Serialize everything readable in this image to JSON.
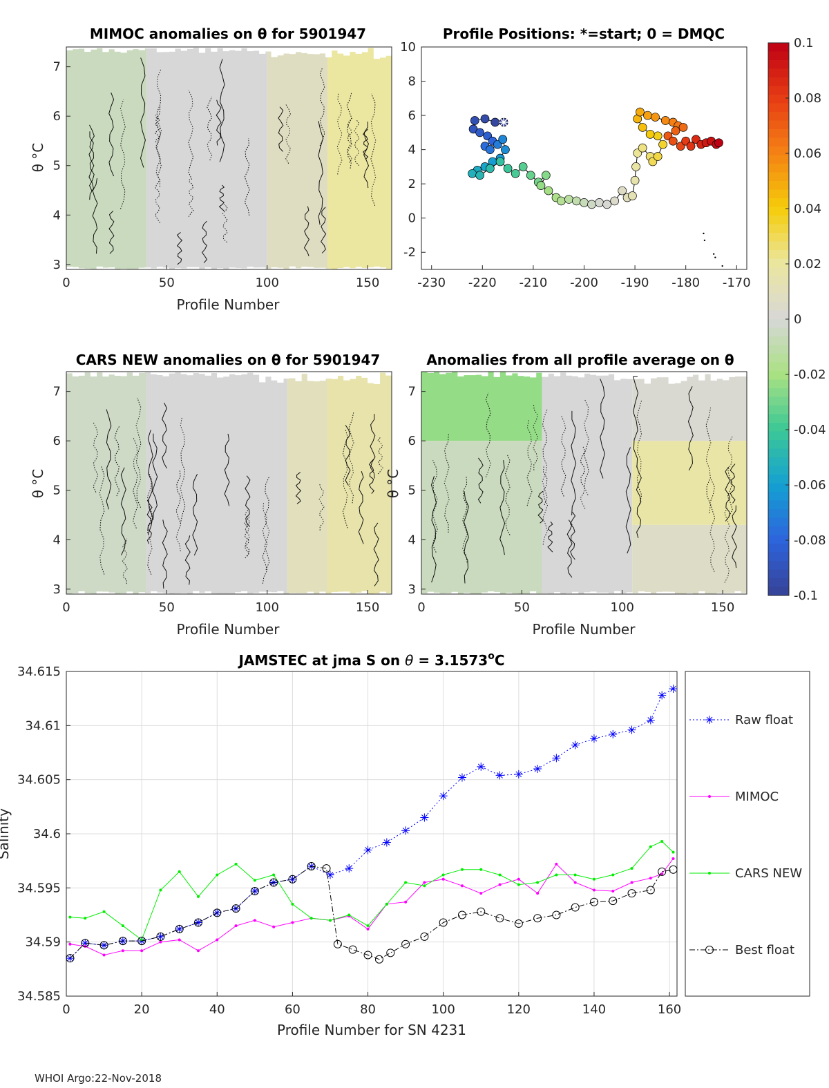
{
  "footer": "WHOI Argo:22-Nov-2018",
  "colorbar": {
    "ticks": [
      {
        "v": 0.1,
        "label": "0.1"
      },
      {
        "v": 0.08,
        "label": "0.08"
      },
      {
        "v": 0.06,
        "label": "0.06"
      },
      {
        "v": 0.04,
        "label": "0.04"
      },
      {
        "v": 0.02,
        "label": "0.02"
      },
      {
        "v": 0,
        "label": "0"
      },
      {
        "v": -0.02,
        "label": "-0.02"
      },
      {
        "v": -0.04,
        "label": "-0.04"
      },
      {
        "v": -0.06,
        "label": "-0.06"
      },
      {
        "v": -0.08,
        "label": "-0.08"
      },
      {
        "v": -0.1,
        "label": "-0.1"
      }
    ],
    "range": [
      -0.1,
      0.1
    ]
  },
  "chart_data": [
    {
      "id": "mimoc",
      "type": "heatmap",
      "title": "MIMOC anomalies on θ  for 5901947",
      "xlabel": "Profile Number",
      "ylabel": "θ °C",
      "xlim": [
        0,
        162
      ],
      "ylim": [
        2.9,
        7.4
      ],
      "xticks": [
        0,
        50,
        100,
        150
      ],
      "yticks": [
        3,
        4,
        5,
        6,
        7
      ],
      "band_anomaly": [
        {
          "x": [
            0,
            40
          ],
          "value": -0.006
        },
        {
          "x": [
            40,
            100
          ],
          "value": 0.0
        },
        {
          "x": [
            100,
            130
          ],
          "value": 0.008
        },
        {
          "x": [
            130,
            162
          ],
          "value": 0.02
        }
      ]
    },
    {
      "id": "positions",
      "type": "scatter",
      "title": "Profile Positions: *=start; 0 = DMQC",
      "xlim": [
        -232,
        -168
      ],
      "ylim": [
        -3,
        10
      ],
      "xticks": [
        -230,
        -220,
        -210,
        -200,
        -190,
        -180,
        -170
      ],
      "yticks": [
        -2,
        0,
        2,
        4,
        6,
        8,
        10
      ],
      "start": {
        "lon": -215.8,
        "lat": 5.6
      },
      "track": [
        {
          "lon": -215.8,
          "lat": 5.6
        },
        {
          "lon": -217.5,
          "lat": 5.6
        },
        {
          "lon": -219.5,
          "lat": 5.8
        },
        {
          "lon": -221.5,
          "lat": 5.7
        },
        {
          "lon": -221.8,
          "lat": 5.2
        },
        {
          "lon": -220.5,
          "lat": 5.0
        },
        {
          "lon": -219.0,
          "lat": 4.8
        },
        {
          "lon": -218.0,
          "lat": 4.5
        },
        {
          "lon": -219.5,
          "lat": 4.2
        },
        {
          "lon": -218.5,
          "lat": 4.0
        },
        {
          "lon": -217.0,
          "lat": 4.3
        },
        {
          "lon": -216.0,
          "lat": 4.6
        },
        {
          "lon": -215.5,
          "lat": 4.0
        },
        {
          "lon": -216.5,
          "lat": 3.5
        },
        {
          "lon": -218.0,
          "lat": 3.3
        },
        {
          "lon": -219.5,
          "lat": 3.0
        },
        {
          "lon": -221.0,
          "lat": 2.8
        },
        {
          "lon": -222.0,
          "lat": 2.6
        },
        {
          "lon": -220.5,
          "lat": 2.5
        },
        {
          "lon": -218.5,
          "lat": 2.9
        },
        {
          "lon": -216.5,
          "lat": 3.3
        },
        {
          "lon": -215.0,
          "lat": 2.9
        },
        {
          "lon": -213.5,
          "lat": 2.6
        },
        {
          "lon": -212.0,
          "lat": 3.0
        },
        {
          "lon": -210.5,
          "lat": 2.5
        },
        {
          "lon": -209.0,
          "lat": 2.1
        },
        {
          "lon": -207.5,
          "lat": 2.5
        },
        {
          "lon": -208.5,
          "lat": 1.9
        },
        {
          "lon": -207.0,
          "lat": 1.6
        },
        {
          "lon": -205.5,
          "lat": 1.2
        },
        {
          "lon": -204.5,
          "lat": 1.0
        },
        {
          "lon": -203.0,
          "lat": 1.1
        },
        {
          "lon": -201.5,
          "lat": 1.0
        },
        {
          "lon": -200.0,
          "lat": 0.9
        },
        {
          "lon": -198.5,
          "lat": 0.8
        },
        {
          "lon": -197.0,
          "lat": 0.9
        },
        {
          "lon": -195.5,
          "lat": 0.8
        },
        {
          "lon": -194.0,
          "lat": 1.0
        },
        {
          "lon": -192.5,
          "lat": 1.6
        },
        {
          "lon": -191.5,
          "lat": 1.2
        },
        {
          "lon": -190.5,
          "lat": 1.3
        },
        {
          "lon": -190.0,
          "lat": 2.2
        },
        {
          "lon": -189.8,
          "lat": 3.0
        },
        {
          "lon": -189.5,
          "lat": 3.8
        },
        {
          "lon": -188.5,
          "lat": 4.1
        },
        {
          "lon": -187.0,
          "lat": 3.6
        },
        {
          "lon": -186.5,
          "lat": 3.3
        },
        {
          "lon": -185.5,
          "lat": 3.6
        },
        {
          "lon": -184.5,
          "lat": 4.3
        },
        {
          "lon": -185.5,
          "lat": 4.8
        },
        {
          "lon": -187.0,
          "lat": 4.9
        },
        {
          "lon": -188.5,
          "lat": 5.3
        },
        {
          "lon": -189.5,
          "lat": 5.8
        },
        {
          "lon": -189.0,
          "lat": 6.2
        },
        {
          "lon": -187.5,
          "lat": 6.0
        },
        {
          "lon": -186.0,
          "lat": 5.9
        },
        {
          "lon": -184.0,
          "lat": 5.7
        },
        {
          "lon": -182.5,
          "lat": 5.6
        },
        {
          "lon": -181.5,
          "lat": 5.4
        },
        {
          "lon": -180.5,
          "lat": 5.3
        },
        {
          "lon": -182.0,
          "lat": 5.1
        },
        {
          "lon": -183.5,
          "lat": 4.8
        },
        {
          "lon": -182.5,
          "lat": 4.5
        },
        {
          "lon": -181.0,
          "lat": 4.2
        },
        {
          "lon": -180.0,
          "lat": 4.5
        },
        {
          "lon": -179.0,
          "lat": 4.2
        },
        {
          "lon": -178.0,
          "lat": 4.6
        },
        {
          "lon": -177.0,
          "lat": 4.3
        },
        {
          "lon": -176.0,
          "lat": 4.4
        },
        {
          "lon": -175.0,
          "lat": 4.5
        },
        {
          "lon": -174.0,
          "lat": 4.3
        },
        {
          "lon": -173.5,
          "lat": 4.4
        }
      ],
      "stray_points": [
        {
          "lon": -176.5,
          "lat": -0.9
        },
        {
          "lon": -176.3,
          "lat": -1.3
        },
        {
          "lon": -174.5,
          "lat": -2.1
        },
        {
          "lon": -174.2,
          "lat": -2.3
        },
        {
          "lon": -172.8,
          "lat": -2.8
        }
      ]
    },
    {
      "id": "cars",
      "type": "heatmap",
      "title": "CARS NEW anomalies on θ for 5901947",
      "xlabel": "Profile Number",
      "ylabel": "θ °C",
      "xlim": [
        0,
        162
      ],
      "ylim": [
        2.9,
        7.4
      ],
      "xticks": [
        0,
        50,
        100,
        150
      ],
      "yticks": [
        3,
        4,
        5,
        6,
        7
      ],
      "band_anomaly": [
        {
          "x": [
            0,
            40
          ],
          "value": -0.004
        },
        {
          "x": [
            40,
            110
          ],
          "value": 0.0
        },
        {
          "x": [
            110,
            130
          ],
          "value": 0.01
        },
        {
          "x": [
            130,
            162
          ],
          "value": 0.016
        }
      ]
    },
    {
      "id": "avg",
      "type": "heatmap",
      "title": "Anomalies from all profile average on θ",
      "xlabel": "Profile Number",
      "ylabel": "θ °C",
      "xlim": [
        0,
        162
      ],
      "ylim": [
        2.9,
        7.4
      ],
      "xticks": [
        0,
        50,
        100,
        150
      ],
      "yticks": [
        3,
        4,
        5,
        6,
        7
      ],
      "band_anomaly": [
        {
          "x": [
            0,
            60
          ],
          "y": [
            6.0,
            7.4
          ],
          "value": -0.024
        },
        {
          "x": [
            0,
            60
          ],
          "y": [
            2.9,
            6.0
          ],
          "value": -0.006
        },
        {
          "x": [
            60,
            105
          ],
          "value": 0.0
        },
        {
          "x": [
            105,
            162
          ],
          "y": [
            4.3,
            6.0
          ],
          "value": 0.018
        },
        {
          "x": [
            105,
            162
          ],
          "y": [
            2.9,
            4.3
          ],
          "value": 0.006
        },
        {
          "x": [
            105,
            162
          ],
          "y": [
            6.0,
            7.4
          ],
          "value": 0.002
        }
      ]
    },
    {
      "id": "salinity",
      "type": "line",
      "title": "JAMSTEC at jma S on θ = 3.1573°C",
      "title_prefix": "JAMSTEC at jma S on ",
      "title_theta": "θ",
      "title_value": " = 3.1573",
      "title_unit_sup": "o",
      "title_unit": "C",
      "xlabel": "Profile Number for SN 4231",
      "ylabel": "Salinity",
      "xlim": [
        0,
        162
      ],
      "ylim": [
        34.585,
        34.615
      ],
      "xticks": [
        0,
        20,
        40,
        60,
        80,
        100,
        120,
        140,
        160
      ],
      "yticks": [
        {
          "v": 34.585,
          "label": "34.585"
        },
        {
          "v": 34.59,
          "label": "34.59"
        },
        {
          "v": 34.595,
          "label": "34.595"
        },
        {
          "v": 34.6,
          "label": "34.6"
        },
        {
          "v": 34.605,
          "label": "34.605"
        },
        {
          "v": 34.61,
          "label": "34.61"
        },
        {
          "v": 34.615,
          "label": "34.615"
        }
      ],
      "grid": true,
      "legend": "right",
      "series": [
        {
          "name": "Raw float",
          "color": "#0000ff",
          "x": [
            1,
            5,
            10,
            15,
            20,
            25,
            30,
            35,
            40,
            45,
            50,
            55,
            60,
            65,
            70,
            75,
            80,
            85,
            90,
            95,
            100,
            105,
            110,
            115,
            120,
            125,
            130,
            135,
            140,
            145,
            150,
            155,
            158,
            161
          ],
          "values": [
            34.5885,
            34.5899,
            34.5897,
            34.5901,
            34.5901,
            34.5905,
            34.5912,
            34.5918,
            34.5927,
            34.5931,
            34.5947,
            34.5955,
            34.5958,
            34.597,
            34.5962,
            34.5968,
            34.5985,
            34.5992,
            34.6003,
            34.6015,
            34.6035,
            34.6052,
            34.6062,
            34.6054,
            34.6055,
            34.606,
            34.607,
            34.6082,
            34.6088,
            34.6092,
            34.6096,
            34.6105,
            34.6128,
            34.6134
          ]
        },
        {
          "name": "MIMOC",
          "color": "#ff00ff",
          "x": [
            1,
            5,
            10,
            15,
            20,
            25,
            30,
            35,
            40,
            45,
            50,
            55,
            60,
            65,
            70,
            75,
            80,
            85,
            90,
            95,
            100,
            105,
            110,
            115,
            120,
            125,
            130,
            135,
            140,
            145,
            150,
            155,
            158,
            161
          ],
          "values": [
            34.5898,
            34.5896,
            34.5888,
            34.5892,
            34.5892,
            34.59,
            34.5902,
            34.5892,
            34.5902,
            34.5915,
            34.592,
            34.5914,
            34.5918,
            34.5922,
            34.592,
            34.5924,
            34.5912,
            34.5935,
            34.5937,
            34.5955,
            34.5958,
            34.5952,
            34.5945,
            34.5953,
            34.5958,
            34.5945,
            34.5972,
            34.5955,
            34.5948,
            34.5947,
            34.5955,
            34.5959,
            34.5963,
            34.5977
          ]
        },
        {
          "name": "CARS NEW",
          "color": "#00ee00",
          "x": [
            1,
            5,
            10,
            15,
            20,
            25,
            30,
            35,
            40,
            45,
            50,
            55,
            60,
            65,
            70,
            75,
            80,
            85,
            90,
            95,
            100,
            105,
            110,
            115,
            120,
            125,
            130,
            135,
            140,
            145,
            150,
            155,
            158,
            161
          ],
          "values": [
            34.5923,
            34.5922,
            34.5928,
            34.5915,
            34.5902,
            34.5948,
            34.5965,
            34.5942,
            34.5962,
            34.5972,
            34.5957,
            34.5962,
            34.5935,
            34.5922,
            34.592,
            34.5925,
            34.5915,
            34.5935,
            34.5955,
            34.5952,
            34.5962,
            34.5967,
            34.5967,
            34.5962,
            34.5953,
            34.5955,
            34.5962,
            34.5962,
            34.5958,
            34.5962,
            34.5968,
            34.5988,
            34.5993,
            34.5983
          ]
        },
        {
          "name": "Best float",
          "color": "#000000",
          "x": [
            1,
            5,
            10,
            15,
            20,
            25,
            30,
            35,
            40,
            45,
            50,
            55,
            60,
            65,
            69,
            72,
            76,
            80,
            83,
            86,
            90,
            95,
            100,
            105,
            110,
            115,
            120,
            125,
            130,
            135,
            140,
            145,
            150,
            155,
            158,
            161
          ],
          "values": [
            34.5885,
            34.5899,
            34.5897,
            34.5901,
            34.5901,
            34.5905,
            34.5912,
            34.5918,
            34.5927,
            34.5931,
            34.5947,
            34.5955,
            34.5958,
            34.597,
            34.5968,
            34.5898,
            34.5893,
            34.5888,
            34.5884,
            34.589,
            34.5898,
            34.5905,
            34.5918,
            34.5925,
            34.5928,
            34.5922,
            34.5917,
            34.5922,
            34.5925,
            34.5932,
            34.5937,
            34.5938,
            34.5945,
            34.5948,
            34.5965,
            34.5967
          ]
        }
      ]
    }
  ]
}
